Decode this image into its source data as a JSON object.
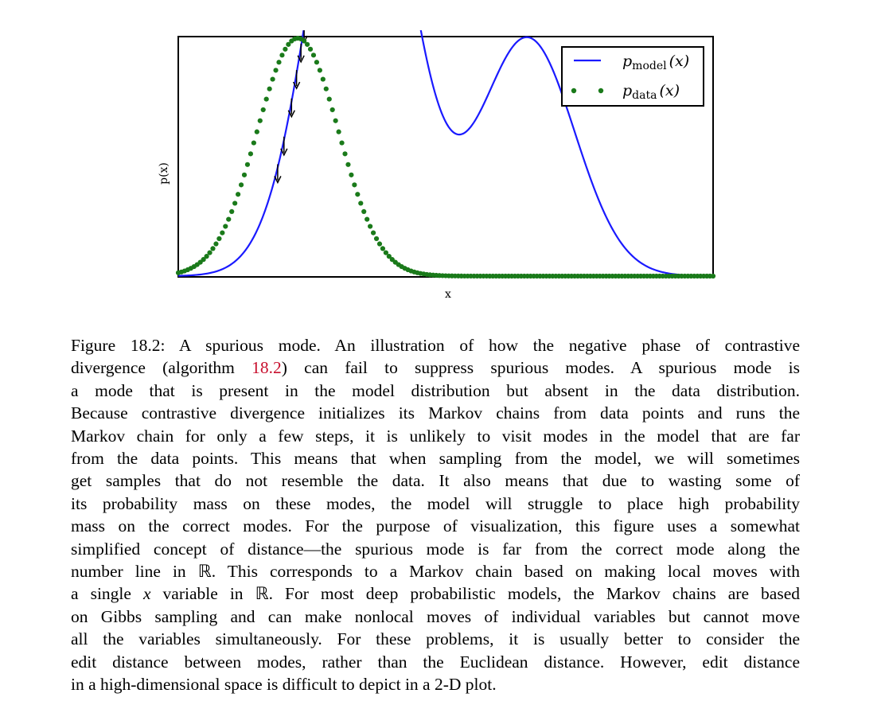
{
  "chart_data": {
    "type": "line",
    "xlabel": "x",
    "ylabel": "p(x)",
    "grid": false,
    "legend_position": "top-right",
    "series": [
      {
        "name": "p_model(x)",
        "legend_base": "p",
        "legend_sub": "model",
        "legend_arg": "(x)",
        "style": "solid line",
        "color": "#1a1aff",
        "components": [
          {
            "mean": 2.9,
            "std": 0.75,
            "weight": 2.15
          },
          {
            "mean": 5.55,
            "std": 0.75,
            "weight": 1.0
          }
        ]
      },
      {
        "name": "p_data(x)",
        "legend_base": "p",
        "legend_sub": "data",
        "legend_arg": "(x)",
        "style": "dotted",
        "color": "#1a7a1a",
        "components": [
          {
            "mean": 1.9,
            "std": 0.65,
            "weight": 1.0
          }
        ]
      }
    ],
    "arrows": {
      "description": "downward arrows on the model curve near the data region",
      "x_positions": [
        1.58,
        1.68,
        1.8,
        1.88,
        1.95,
        2.0,
        2.04,
        2.4,
        2.5,
        2.55,
        2.6,
        2.65,
        2.7
      ]
    },
    "xlim": [
      0,
      8.5
    ],
    "colors": {
      "model": "#1a1aff",
      "data": "#1a7a1a",
      "arrow": "#000000"
    }
  },
  "caption": {
    "line1_label": "Figure 18.2: A spurious mode. An illustration of how the negative phase of contrastive",
    "line2_pre": "divergence (algorithm ",
    "line2_ref": "18.2",
    "line2_post": ") can fail to suppress spurious modes. A spurious mode is",
    "line3": "a mode that is present in the model distribution but absent in the data distribution.",
    "line4": "Because contrastive divergence initializes its Markov chains from data points and runs the",
    "line5": "Markov chain for only a few steps, it is unlikely to visit modes in the model that are far",
    "line6": "from the data points. This means that when sampling from the model, we will sometimes",
    "line7": "get samples that do not resemble the data. It also means that due to wasting some of",
    "line8": "its probability mass on these modes, the model will struggle to place high probability",
    "line9": "mass on the correct modes. For the purpose of visualization, this figure uses a somewhat",
    "line10": "simplified concept of distance—the spurious mode is far from the correct mode along the",
    "line11": "number line in ℝ. This corresponds to a Markov chain based on making local moves with",
    "line12_pre": "a single ",
    "line12_var": "x",
    "line12_post": " variable in ℝ. For most deep probabilistic models, the Markov chains are based",
    "line13": "on Gibbs sampling and can make nonlocal moves of individual variables but cannot move",
    "line14": "all the variables simultaneously. For these problems, it is usually better to consider the",
    "line15": "edit distance between modes, rather than the Euclidean distance. However, edit distance",
    "line16": "in a high-dimensional space is difficult to depict in a 2-D plot."
  }
}
